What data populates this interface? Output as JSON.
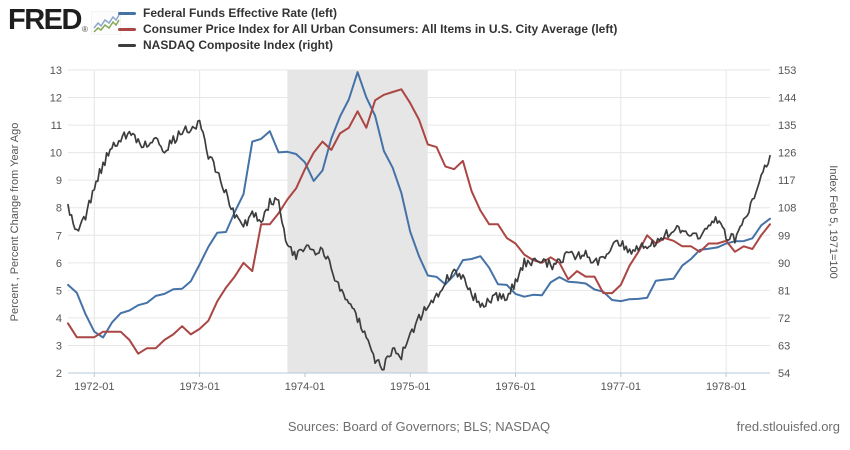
{
  "header": {
    "logo_text": "FRED",
    "logo_reg": "®"
  },
  "footer": {
    "sources": "Sources: Board of Governors; BLS; NASDAQ",
    "site": "fred.stlouisfed.org"
  },
  "colors": {
    "fed_funds": "#4572a7",
    "cpi": "#aa4643",
    "nasdaq": "#3d3d3d",
    "recession_band": "#e6e6e6",
    "gridline": "#e6e6e6",
    "axis_line": "#b7c8da",
    "tick_label": "#545454"
  },
  "chart_data": {
    "type": "line",
    "x_interval": "monthly",
    "x_start": "1971-10",
    "x_end": "1978-06",
    "x_tick_labels": [
      "1972-01",
      "1973-01",
      "1974-01",
      "1975-01",
      "1976-01",
      "1977-01",
      "1978-01"
    ],
    "grid": true,
    "legend_position": "top-left",
    "recession_band": {
      "start": "1973-11",
      "end": "1975-03"
    },
    "left_axis": {
      "title": "Percent , Percent Change from Year Ago",
      "min": 2,
      "max": 13,
      "ticks": [
        2,
        3,
        4,
        5,
        6,
        7,
        8,
        9,
        10,
        11,
        12,
        13
      ]
    },
    "right_axis": {
      "title": "Index Feb 5, 1971=100",
      "min": 54,
      "max": 153,
      "ticks": [
        54,
        63,
        72,
        81,
        90,
        99,
        108,
        117,
        126,
        135,
        144,
        153
      ]
    },
    "series": [
      {
        "name": "Federal Funds Effective Rate (left)",
        "axis": "left",
        "color": "#4572a7",
        "values": [
          5.2,
          4.91,
          4.14,
          3.5,
          3.29,
          3.83,
          4.17,
          4.27,
          4.46,
          4.55,
          4.8,
          4.87,
          5.04,
          5.06,
          5.33,
          5.94,
          6.58,
          7.09,
          7.12,
          7.84,
          8.49,
          10.4,
          10.5,
          10.78,
          10.01,
          10.03,
          9.95,
          9.65,
          8.97,
          9.35,
          10.51,
          11.31,
          11.93,
          12.92,
          12.01,
          11.34,
          10.06,
          9.45,
          8.53,
          7.13,
          6.24,
          5.54,
          5.49,
          5.22,
          5.55,
          6.1,
          6.14,
          6.24,
          5.82,
          5.22,
          5.2,
          4.87,
          4.77,
          4.84,
          4.82,
          5.29,
          5.48,
          5.31,
          5.29,
          5.25,
          5.03,
          4.95,
          4.65,
          4.61,
          4.68,
          4.69,
          4.73,
          5.35,
          5.39,
          5.42,
          5.9,
          6.14,
          6.47,
          6.51,
          6.56,
          6.7,
          6.78,
          6.79,
          6.89,
          7.36,
          7.6
        ]
      },
      {
        "name": "Consumer Price Index for All Urban Consumers: All Items in U.S. City Average (left)",
        "axis": "left",
        "color": "#aa4643",
        "values": [
          3.8,
          3.3,
          3.3,
          3.3,
          3.5,
          3.5,
          3.5,
          3.2,
          2.7,
          2.9,
          2.9,
          3.2,
          3.4,
          3.7,
          3.4,
          3.6,
          3.9,
          4.6,
          5.1,
          5.5,
          6.0,
          5.7,
          7.4,
          7.4,
          7.8,
          8.3,
          8.7,
          9.4,
          10.0,
          10.4,
          10.1,
          10.7,
          10.9,
          11.5,
          10.9,
          11.9,
          12.1,
          12.2,
          12.3,
          11.8,
          11.2,
          10.3,
          10.2,
          9.5,
          9.4,
          9.7,
          8.6,
          7.9,
          7.4,
          7.4,
          6.9,
          6.7,
          6.3,
          6.1,
          6.0,
          6.2,
          6.0,
          5.4,
          5.7,
          5.5,
          5.5,
          4.9,
          4.9,
          5.2,
          5.9,
          6.4,
          7.0,
          6.7,
          6.9,
          6.8,
          6.6,
          6.6,
          6.4,
          6.7,
          6.7,
          6.8,
          6.4,
          6.6,
          6.5,
          7.0,
          7.4
        ]
      },
      {
        "name": "NASDAQ Composite Index (right)",
        "axis": "right",
        "color": "#3d3d3d",
        "jitter": 1.6,
        "values": [
          109,
          100,
          105,
          115,
          122,
          128,
          131,
          132,
          130,
          128,
          131,
          127,
          130,
          133,
          134,
          136,
          125,
          120,
          113,
          105,
          102,
          106,
          104,
          110,
          110,
          95,
          92,
          96,
          94,
          95,
          88,
          81,
          78,
          72,
          65,
          58,
          56,
          62,
          60,
          66,
          72,
          76,
          79,
          84,
          87,
          85,
          80,
          76,
          78,
          79,
          78,
          84,
          90,
          90,
          91,
          89,
          91,
          93,
          92,
          93,
          90,
          91,
          96,
          97,
          94,
          95,
          96,
          97,
          99,
          101,
          100,
          100,
          98,
          102,
          104,
          99,
          98,
          104,
          110,
          119,
          125
        ]
      }
    ]
  }
}
